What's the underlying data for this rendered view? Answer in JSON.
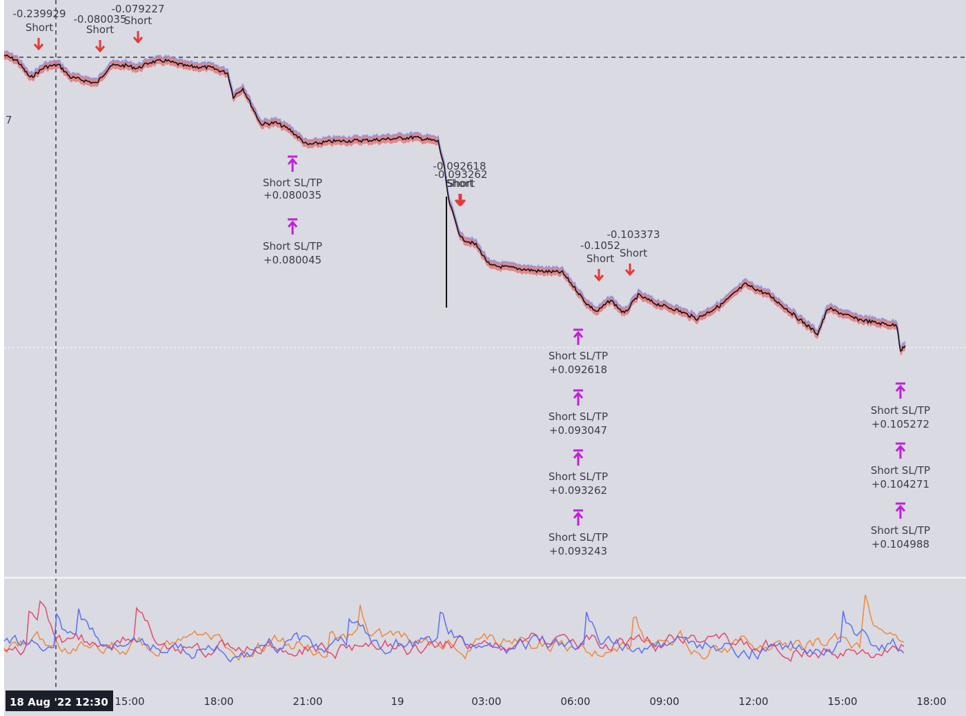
{
  "chart_data": {
    "type": "line",
    "series": [
      {
        "type": "price",
        "color": "#111111",
        "band_color": "#e0787a",
        "band_edge_color": "#7f8fe8"
      }
    ],
    "price_path_time": [
      "12:00",
      "12:30",
      "13:00",
      "13:30",
      "14:00",
      "14:30",
      "15:00",
      "15:30",
      "16:00",
      "16:30",
      "17:00",
      "17:30",
      "18:00",
      "18:30",
      "19:00",
      "19:30",
      "20:00",
      "20:30",
      "21:00",
      "21:30",
      "22:00",
      "22:30",
      "23:00",
      "23:30",
      "00:00",
      "00:30",
      "01:00",
      "01:30",
      "02:00",
      "02:30",
      "03:00",
      "03:30",
      "04:00",
      "04:30",
      "05:00",
      "05:30",
      "06:00",
      "06:30",
      "07:00",
      "07:30",
      "08:00",
      "08:30",
      "09:00",
      "09:30",
      "10:00",
      "10:30",
      "11:00",
      "11:30",
      "12:00",
      "12:30",
      "13:00",
      "13:30",
      "14:00",
      "14:30",
      "15:00",
      "15:30",
      "16:00",
      "16:30",
      "17:00"
    ],
    "x_ticks": [
      "15:00",
      "18:00",
      "21:00",
      "19",
      "03:00",
      "06:00",
      "09:00",
      "12:00",
      "15:00",
      "18:00"
    ],
    "cursor_label": "18 Aug '22  12:30",
    "left_axis_fragment": "7",
    "entries": [
      {
        "label": "Short",
        "value": "-0.239929"
      },
      {
        "label": "Short",
        "value": "-0.080035"
      },
      {
        "label": "Short",
        "value": "-0.079227"
      },
      {
        "label": "Short",
        "value": "-0.092618"
      },
      {
        "label": "Short",
        "value": "-0.093262"
      },
      {
        "label": "Short",
        "value": "-0.1052"
      },
      {
        "label": "Short",
        "value": "-0.103373"
      }
    ],
    "exits": [
      {
        "label": "Short SL/TP",
        "value": "+0.080035"
      },
      {
        "label": "Short SL/TP",
        "value": "+0.080045"
      },
      {
        "label": "Short SL/TP",
        "value": "+0.092618"
      },
      {
        "label": "Short SL/TP",
        "value": "+0.093047"
      },
      {
        "label": "Short SL/TP",
        "value": "+0.093262"
      },
      {
        "label": "Short SL/TP",
        "value": "+0.093243"
      },
      {
        "label": "Short SL/TP",
        "value": "+0.105272"
      },
      {
        "label": "Short SL/TP",
        "value": "+0.104271"
      },
      {
        "label": "Short SL/TP",
        "value": "+0.104988"
      }
    ],
    "oscillator_colors": [
      "#f0883a",
      "#e24a6a",
      "#5b6ff0"
    ],
    "entry_marker_color": "#e23a3a",
    "exit_marker_color": "#c020d8",
    "grid": false,
    "legend": "none"
  }
}
